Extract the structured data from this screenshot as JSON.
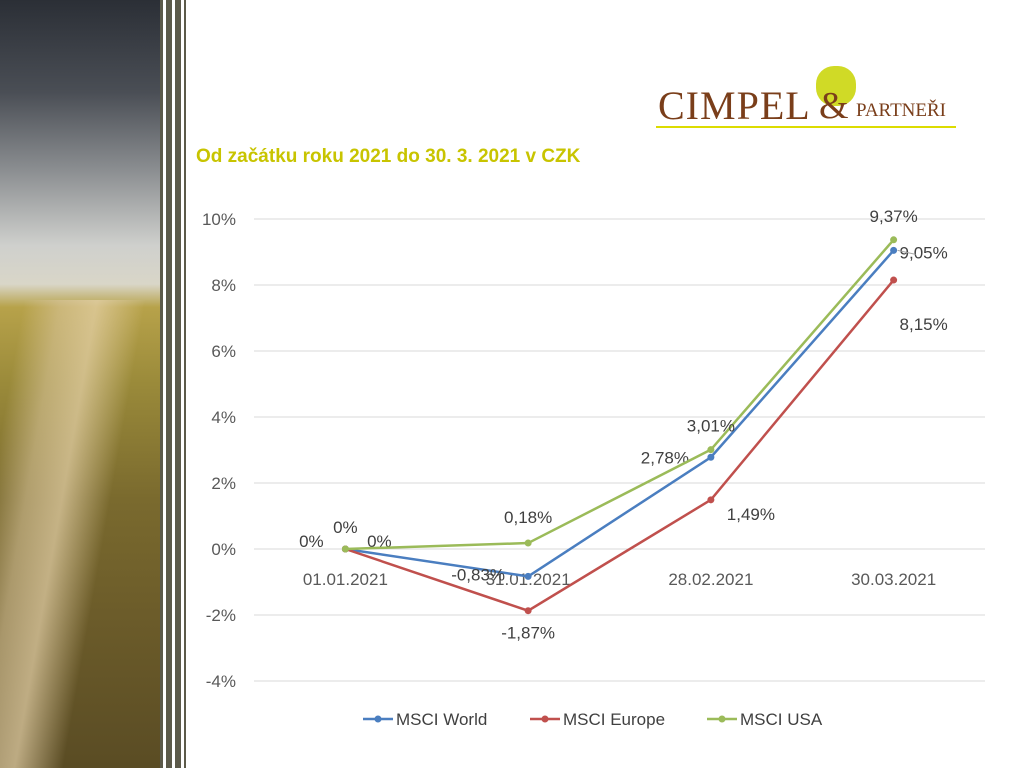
{
  "title": "Od začátku roku 2021 do 30. 3. 2021 v CZK",
  "logo": {
    "text": "Cimpel & partneři",
    "main": "CIMPEL",
    "amp": "&",
    "sub": "PARTNEŘI"
  },
  "colors": {
    "world": "#4a7ec0",
    "europe": "#c0504d",
    "usa": "#9bbb59",
    "title": "#c8c400"
  },
  "chart_data": {
    "type": "line",
    "title": "Od začátku roku 2021 do 30. 3. 2021 v CZK",
    "categories": [
      "01.01.2021",
      "31.01.2021",
      "28.02.2021",
      "30.03.2021"
    ],
    "ylim": [
      -4,
      10
    ],
    "yticks": [
      -4,
      -2,
      0,
      2,
      4,
      6,
      8,
      10
    ],
    "ytick_labels": [
      "-4%",
      "-2%",
      "0%",
      "2%",
      "4%",
      "6%",
      "8%",
      "10%"
    ],
    "grid": true,
    "legend": "bottom",
    "series": [
      {
        "name": "MSCI World",
        "values": [
          0,
          -0.83,
          2.78,
          9.05
        ],
        "labels": [
          "0%",
          "-0,83%",
          "2,78%",
          "9,05%"
        ]
      },
      {
        "name": "MSCI Europe",
        "values": [
          0,
          -1.87,
          1.49,
          8.15
        ],
        "labels": [
          "0%",
          "-1,87%",
          "1,49%",
          "8,15%"
        ]
      },
      {
        "name": "MSCI USA",
        "values": [
          0,
          0.18,
          3.01,
          9.37
        ],
        "labels": [
          "0%",
          "0,18%",
          "3,01%",
          "9,37%"
        ]
      }
    ]
  }
}
